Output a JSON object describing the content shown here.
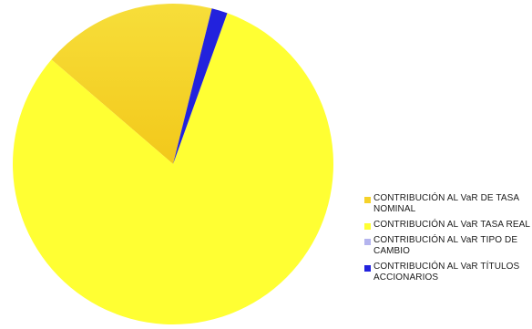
{
  "chart_data": {
    "type": "pie",
    "title": "",
    "legend_position": "right-bottom",
    "categories": [
      "CONTRIBUCIÓN AL VaR DE TASA NOMINAL",
      "CONTRIBUCIÓN AL VaR TASA REAL",
      "CONTRIBUCIÓN AL VaR TIPO DE CAMBIO",
      "CONTRIBUCIÓN AL VaR TÍTULOS ACCIONARIOS"
    ],
    "values": [
      17.6,
      80.8,
      0.0,
      1.6
    ],
    "colors": [
      "#F5D22A",
      "#FFFF33",
      "#B4B4EE",
      "#2222DD"
    ]
  }
}
